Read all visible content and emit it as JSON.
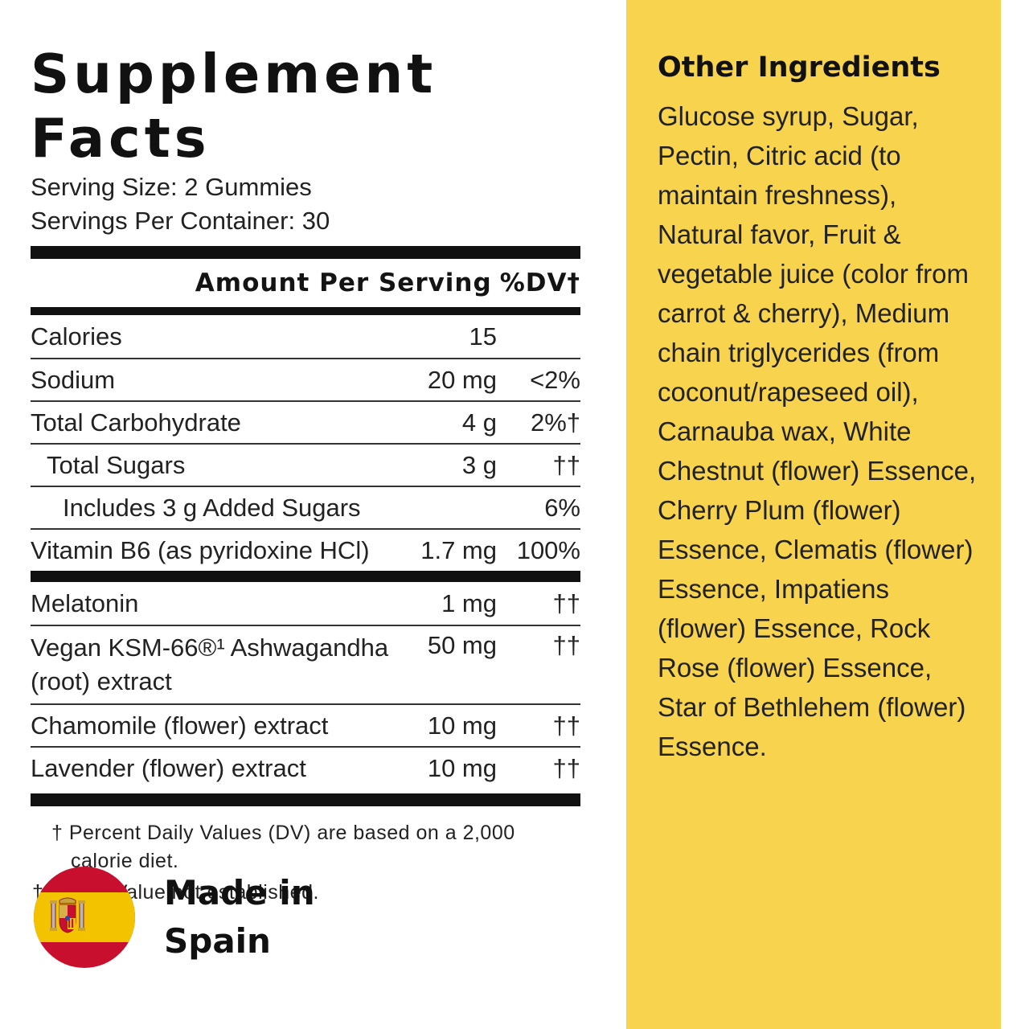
{
  "facts": {
    "title": "Supplement Facts",
    "serving_size": "Serving Size: 2 Gummies",
    "servings_per_container": "Servings Per Container: 30",
    "header_amount": "Amount Per Serving",
    "header_dv": "%DV†",
    "rows_a": [
      {
        "name": "Calories",
        "amount": "15",
        "dv": ""
      },
      {
        "name": "Sodium",
        "amount": "20 mg",
        "dv": "<2%"
      },
      {
        "name": "Total Carbohydrate",
        "amount": "4 g",
        "dv": "2%†"
      },
      {
        "name": "Total Sugars",
        "amount": "3 g",
        "dv": "††"
      },
      {
        "name": "Includes 3 g Added Sugars",
        "amount": "",
        "dv": "6%"
      },
      {
        "name": "Vitamin B6 (as pyridoxine HCl)",
        "amount": "1.7 mg",
        "dv": "100%"
      }
    ],
    "rows_b": [
      {
        "name": "Melatonin",
        "amount": "1 mg",
        "dv": "††"
      },
      {
        "name": "Vegan KSM-66®¹ Ashwagandha (root) extract",
        "amount": "50 mg",
        "dv": "††"
      },
      {
        "name": "Chamomile (flower) extract",
        "amount": "10 mg",
        "dv": "††"
      },
      {
        "name": "Lavender (flower) extract",
        "amount": "10 mg",
        "dv": "††"
      }
    ],
    "footnote_1": "† Percent Daily Values (DV) are based on a 2,000",
    "footnote_1b": "calorie diet.",
    "footnote_2": "†† Daily Value not established."
  },
  "made_in": {
    "line1": "Made in",
    "line2": "Spain",
    "flag_icon": "spain-flag-icon",
    "colors": {
      "red": "#c8102e",
      "yellow": "#f4c300"
    }
  },
  "ingredients": {
    "title": "Other Ingredients",
    "text": "Glucose syrup, Sugar, Pectin, Citric acid (to maintain freshness), Natural favor, Fruit & vegetable juice (color from carrot & cherry), Medium chain triglycerides (from coconut/rapeseed oil), Carnauba wax, White Chestnut (flower) Essence, Cherry Plum (flower) Essence, Clematis (flower) Essence, Impatiens (flower) Essence, Rock Rose (flower) Essence, Star of Bethlehem (flower) Essence."
  },
  "colors": {
    "accent_panel": "#f8d34e",
    "text": "#222222"
  }
}
